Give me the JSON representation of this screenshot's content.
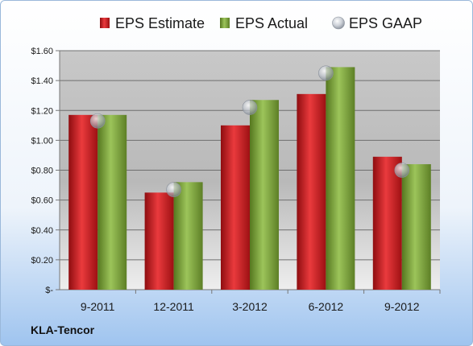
{
  "chart_data": {
    "type": "bar",
    "categories": [
      "9-2011",
      "12-2011",
      "3-2012",
      "6-2012",
      "9-2012"
    ],
    "series": [
      {
        "name": "EPS Estimate",
        "values": [
          1.17,
          0.65,
          1.1,
          1.31,
          0.89
        ],
        "color": "#d01f24"
      },
      {
        "name": "EPS Actual",
        "values": [
          1.17,
          0.72,
          1.27,
          1.49,
          0.84
        ],
        "color": "#7aa23a"
      },
      {
        "name": "EPS GAAP",
        "values": [
          1.13,
          0.67,
          1.22,
          1.45,
          0.8
        ],
        "color": "#b5bcc6",
        "marker": "circle"
      }
    ],
    "yticks": [
      "$-",
      "$0.20",
      "$0.40",
      "$0.60",
      "$0.80",
      "$1.00",
      "$1.20",
      "$1.40",
      "$1.60"
    ],
    "ylim": [
      0,
      1.6
    ],
    "ystep": 0.2,
    "grid": true,
    "legend": "top"
  },
  "brand": "KLA-Tencor"
}
